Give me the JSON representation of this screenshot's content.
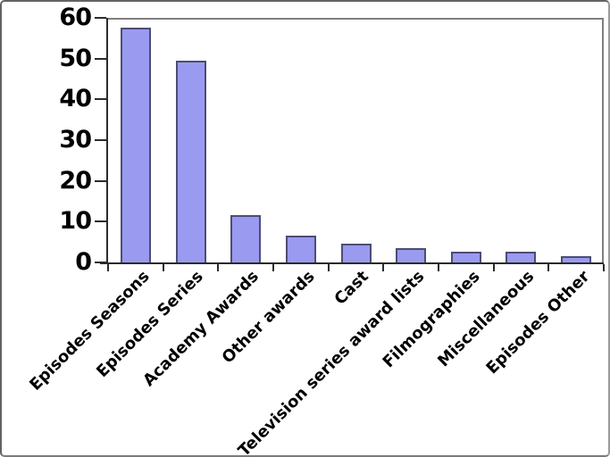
{
  "chart_data": {
    "type": "bar",
    "title": "",
    "xlabel": "",
    "ylabel": "",
    "categories": [
      "Episodes Seasons",
      "Episodes Series",
      "Academy Awards",
      "Other awards",
      "Cast",
      "Television series award lists",
      "Filmographies",
      "Miscellaneous",
      "Episodes Other"
    ],
    "values": [
      58,
      50,
      12,
      7,
      5,
      4,
      3,
      3,
      2
    ],
    "ylim": [
      0,
      60
    ],
    "yticks": [
      0,
      10,
      20,
      30,
      40,
      50,
      60
    ],
    "ytick_labels": [
      "0",
      "10",
      "20",
      "30",
      "40",
      "50",
      "60"
    ],
    "grid": false,
    "legend": "none",
    "x_label_rotation_deg": -45,
    "colors": {
      "bar_fill": "#9a9af0",
      "bar_border": "#4d4d73",
      "axis_line": "#2b2b2b",
      "plot_frame": "#808080",
      "label_text": "#000000",
      "background": "#ffffff"
    }
  }
}
